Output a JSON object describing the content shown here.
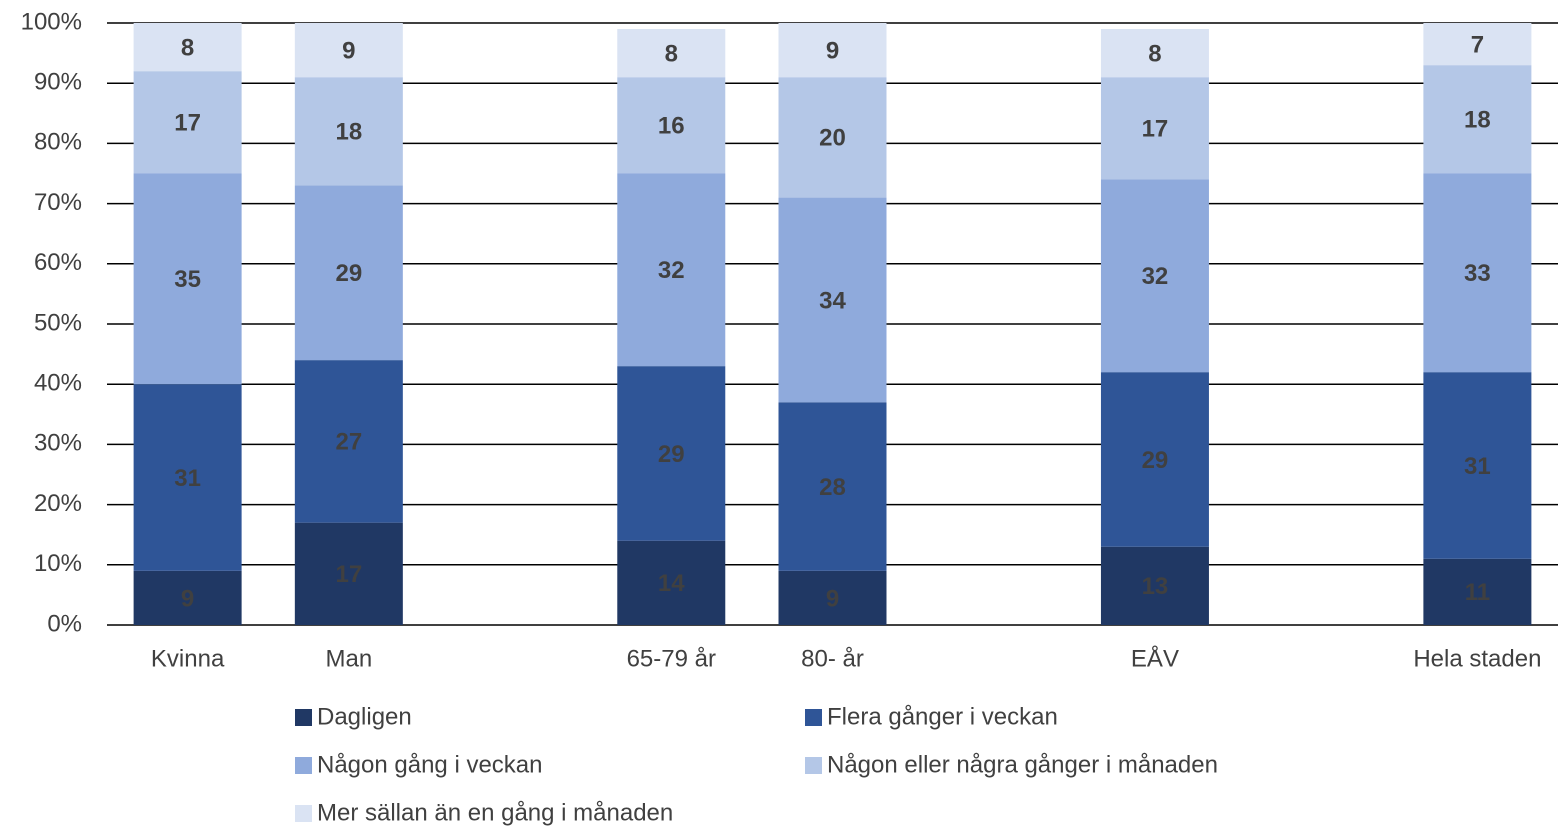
{
  "chart_data": {
    "type": "stacked_bar",
    "categories": [
      "Kvinna",
      "Man",
      null,
      "65-79 år",
      "80- år",
      null,
      "EÅV",
      null,
      "Hela staden"
    ],
    "series": [
      {
        "name": "Dagligen",
        "color": "#203864",
        "values": [
          9,
          17,
          null,
          14,
          9,
          null,
          13,
          null,
          11
        ]
      },
      {
        "name": "Flera gånger i veckan",
        "color": "#2f5597",
        "values": [
          31,
          27,
          null,
          29,
          28,
          null,
          29,
          null,
          31
        ]
      },
      {
        "name": "Någon gång i veckan",
        "color": "#8faadc",
        "values": [
          35,
          29,
          null,
          32,
          34,
          null,
          32,
          null,
          33
        ]
      },
      {
        "name": "Någon eller några gånger i månaden",
        "color": "#b4c7e7",
        "values": [
          17,
          18,
          null,
          16,
          20,
          null,
          17,
          null,
          18
        ]
      },
      {
        "name": "Mer sällan än en gång i månaden",
        "color": "#dae3f3",
        "values": [
          8,
          9,
          null,
          8,
          9,
          null,
          8,
          null,
          7
        ]
      }
    ],
    "ylim": [
      0,
      100
    ],
    "yticks": [
      {
        "value": 0,
        "label": "0%"
      },
      {
        "value": 10,
        "label": "10%"
      },
      {
        "value": 20,
        "label": "20%"
      },
      {
        "value": 30,
        "label": "30%"
      },
      {
        "value": 40,
        "label": "40%"
      },
      {
        "value": 50,
        "label": "50%"
      },
      {
        "value": 60,
        "label": "60%"
      },
      {
        "value": 70,
        "label": "70%"
      },
      {
        "value": 80,
        "label": "80%"
      },
      {
        "value": 90,
        "label": "90%"
      },
      {
        "value": 100,
        "label": "100%"
      }
    ],
    "grid": true,
    "legend": "bottom"
  }
}
